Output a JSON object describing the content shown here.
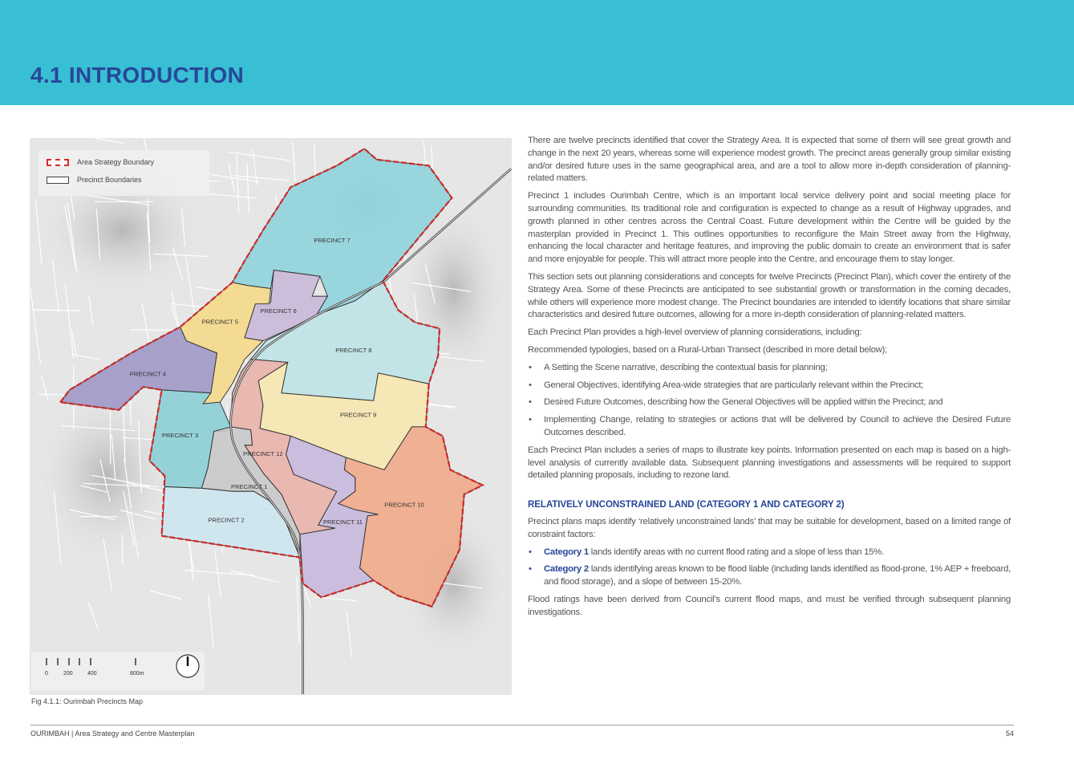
{
  "header": {
    "title": "4.1 INTRODUCTION",
    "band_color": "#38bfd3",
    "title_color": "#27479a"
  },
  "map": {
    "legend": {
      "boundary": "Area Strategy Boundary",
      "precincts": "Precinct Boundaries"
    },
    "precincts": [
      {
        "id": "p7",
        "label": "PRECINCT 7",
        "color": "#8fd3dc"
      },
      {
        "id": "p6",
        "label": "PRECINCT 6",
        "color": "#c9b8d9"
      },
      {
        "id": "p5",
        "label": "PRECINCT 5",
        "color": "#f5d98a"
      },
      {
        "id": "p4",
        "label": "PRECINCT 4",
        "color": "#9f98c8"
      },
      {
        "id": "p8",
        "label": "PRECINCT 8",
        "color": "#bfe3e6"
      },
      {
        "id": "p9",
        "label": "PRECINCT 9",
        "color": "#f7e7b0"
      },
      {
        "id": "p12",
        "label": "PRECINCT 12",
        "color": "#e9b3aa"
      },
      {
        "id": "p10",
        "label": "PRECINCT 10",
        "color": "#f0aa8a"
      },
      {
        "id": "p11",
        "label": "PRECINCT 11",
        "color": "#c8b8dc"
      },
      {
        "id": "p3",
        "label": "PRECINCT 3",
        "color": "#8ccfd6"
      },
      {
        "id": "p1",
        "label": "PRECINCT 1",
        "color": "#c9c9c9"
      },
      {
        "id": "p2",
        "label": "PRECINCT 2",
        "color": "#cde6ef"
      }
    ],
    "scale": {
      "t0": "0",
      "t1": "200",
      "t2": "400",
      "t3": "800m"
    },
    "caption": "Fig 4.1.1: Ourimbah Precincts Map",
    "boundary_color": "#d42a2a"
  },
  "body": {
    "p1": "There are twelve precincts identified that cover the Strategy Area. It is expected that some of them will see great growth and change in the next 20 years, whereas some will experience modest growth. The precinct areas generally group similar existing and/or desired future  uses in the same geographical area, and are a tool to allow more in-depth consideration of planning-related matters.",
    "p2": "Precinct 1 includes Ourimbah Centre, which is an important local service delivery point and social meeting place for surrounding communities. Its traditional role and configuration is expected to change as a result of Highway upgrades, and growth planned in other centres across the Central Coast. Future development within the Centre will be guided by the masterplan provided in Precinct 1. This outlines opportunities to reconfigure the Main Street away from the Highway, enhancing the local character and heritage features, and improving the public domain to create an environment that is safer and more enjoyable for people. This will attract more people into the Centre, and encourage them to stay longer.",
    "p3": "This section sets out planning considerations and concepts for twelve Precincts (Precinct Plan), which cover the entirety of the Strategy Area. Some of these Precincts are anticipated to see substantial growth or transformation in the coming decades, while others will experience more modest change. The Precinct boundaries are intended to identify locations that share similar characteristics and desired future outcomes, allowing for a more in-depth consideration of planning-related matters.",
    "p4": "Each Precinct Plan provides a high-level overview of planning considerations, including:",
    "p5": "Recommended typologies, based on a Rural-Urban Transect (described in more detail below);",
    "bullets": [
      "A Setting the Scene narrative, describing the contextual basis for planning;",
      "General Objectives, identifying Area-wide strategies that are particularly relevant within the Precinct;",
      "Desired Future Outcomes, describing how the General Objectives will be applied within the Precinct; and",
      "Implementing Change, relating to strategies or actions that will be delivered by Council to achieve the Desired Future Outcomes described."
    ],
    "p6": "Each Precinct Plan includes a series of maps to illustrate key points. Information presented on each map is based on a high-level analysis of currently available data. Subsequent planning investigations and assessments will be required to support detailed planning proposals, including to rezone land.",
    "h2": "RELATIVELY UNCONSTRAINED LAND (CATEGORY 1 AND CATEGORY 2)",
    "p7": "Precinct plans maps identify ‘relatively unconstrained lands’ that may be suitable for development, based on a limited range of constraint factors:",
    "cat1": {
      "term": "Category 1",
      "text": " lands identify areas with no current flood rating and a slope of less than 15%."
    },
    "cat2": {
      "term": "Category 2",
      "text": " lands identifying areas known to be flood liable (including lands identified as flood-prone, 1% AEP + freeboard, and flood storage), and a slope of between 15-20%."
    },
    "p8": "Flood ratings have been derived from Council’s current flood maps, and must be verified through subsequent planning investigations."
  },
  "footer": {
    "left": "OURIMBAH | Area Strategy and Centre Masterplan",
    "page": "54"
  }
}
